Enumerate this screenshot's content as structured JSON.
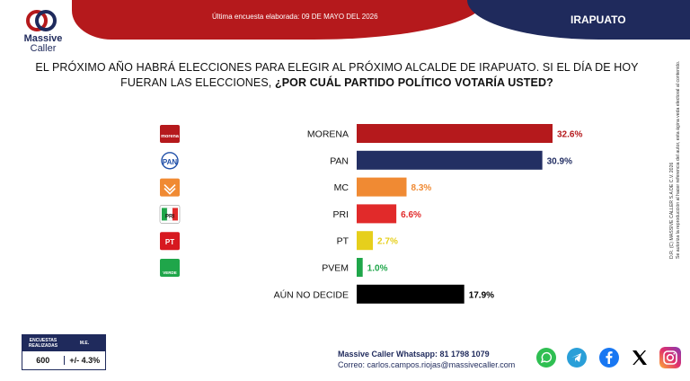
{
  "header": {
    "survey_date": "Última encuesta elaborada: 09 DE MAYO DEL 2026",
    "city": "IRAPUATO",
    "brand_line1": "Massive",
    "brand_line2": "Caller"
  },
  "question": {
    "line1": "EL PRÓXIMO AÑO HABRÁ ELECCIONES PARA ELEGIR AL PRÓXIMO ALCALDE DE IRAPUATO. SI EL DÍA DE HOY",
    "line2_plain": "FUERAN LAS ELECCIONES, ",
    "line2_bold": "¿POR CUÁL PARTIDO POLÍTICO VOTARÍA USTED?"
  },
  "chart_data": {
    "type": "bar",
    "orientation": "horizontal",
    "categories": [
      "MORENA",
      "PAN",
      "MC",
      "PRI",
      "PT",
      "PVEM",
      "AÚN NO DECIDE"
    ],
    "values": [
      32.6,
      30.9,
      8.3,
      6.6,
      2.7,
      1.0,
      17.9
    ],
    "value_labels": [
      "32.6%",
      "30.9%",
      "8.3%",
      "6.6%",
      "2.7%",
      "1.0%",
      "17.9%"
    ],
    "colors": [
      "#b5191c",
      "#232f63",
      "#f08a33",
      "#e12a2a",
      "#e6cf1c",
      "#1fa64a",
      "#000000"
    ],
    "label_colors": [
      "#b5191c",
      "#232f63",
      "#f08a33",
      "#e12a2a",
      "#e6cf1c",
      "#1fa64a",
      "#000000"
    ],
    "party_logos": [
      {
        "name": "morena-logo",
        "text": "morena"
      },
      {
        "name": "pan-logo",
        "text": "PAN"
      },
      {
        "name": "mc-logo",
        "text": ""
      },
      {
        "name": "pri-logo",
        "text": "PRI"
      },
      {
        "name": "pt-logo",
        "text": "PT"
      },
      {
        "name": "pvem-logo",
        "text": "VERDE"
      },
      {
        "name": "",
        "text": ""
      }
    ],
    "xlim": [
      0,
      36
    ],
    "grid": false,
    "legend": "none"
  },
  "side_note": {
    "line1": "D.R. (C) MASSIVE CALLER S.A DE C.V. 2026",
    "line2": "Se autoriza la reproducción al hacer referencia del autor, esta ágina veda electoral al contenido."
  },
  "stats": {
    "col1_header": "ENCUESTAS REALIZADAS",
    "col2_header": "M.E.",
    "col1_value": "600",
    "col2_value": "+/- 4.3%"
  },
  "contact": {
    "whatsapp": "Massive Caller Whatsapp: 81 1798 1079",
    "email": "Correo: carlos.campos.riojas@massivecaller.com"
  },
  "social": [
    "whatsapp-icon",
    "telegram-icon",
    "facebook-icon",
    "x-icon",
    "instagram-icon"
  ],
  "brand_colors": {
    "red": "#b5191c",
    "navy": "#1f2a5c"
  }
}
